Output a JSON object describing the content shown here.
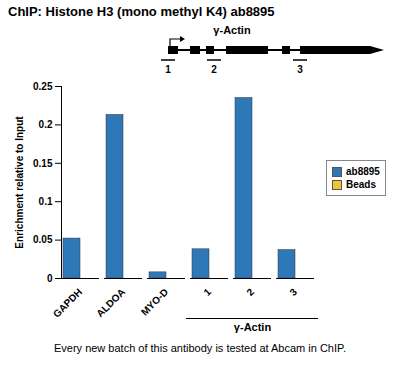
{
  "chart_data": {
    "type": "bar",
    "title": "ChIP: Histone H3 (mono methyl K4) ab8895",
    "caption": "Every new batch of this antibody is tested at Abcam in ChIP.",
    "y_label": "Enrichment relative to Input",
    "categories": [
      "GAPDH",
      "ALDOA",
      "MYO-D",
      "1",
      "2",
      "3"
    ],
    "category_group": {
      "label": "γ-Actin",
      "categories": [
        "1",
        "2",
        "3"
      ]
    },
    "gene_diagram": {
      "gene": "γ-Actin",
      "amplicons": [
        "1",
        "2",
        "3"
      ]
    },
    "series": [
      {
        "name": "ab8895",
        "color": "#2f78b8",
        "values": [
          0.052,
          0.213,
          0.008,
          0.038,
          0.235,
          0.037
        ]
      },
      {
        "name": "Beads",
        "color": "#f2c230",
        "values": [
          0,
          0,
          0,
          0,
          0,
          0
        ]
      }
    ],
    "ylim": [
      0,
      0.25
    ],
    "yticks": [
      0,
      0.05,
      0.1,
      0.15,
      0.2,
      0.25
    ],
    "grid": false,
    "legend": "right"
  }
}
